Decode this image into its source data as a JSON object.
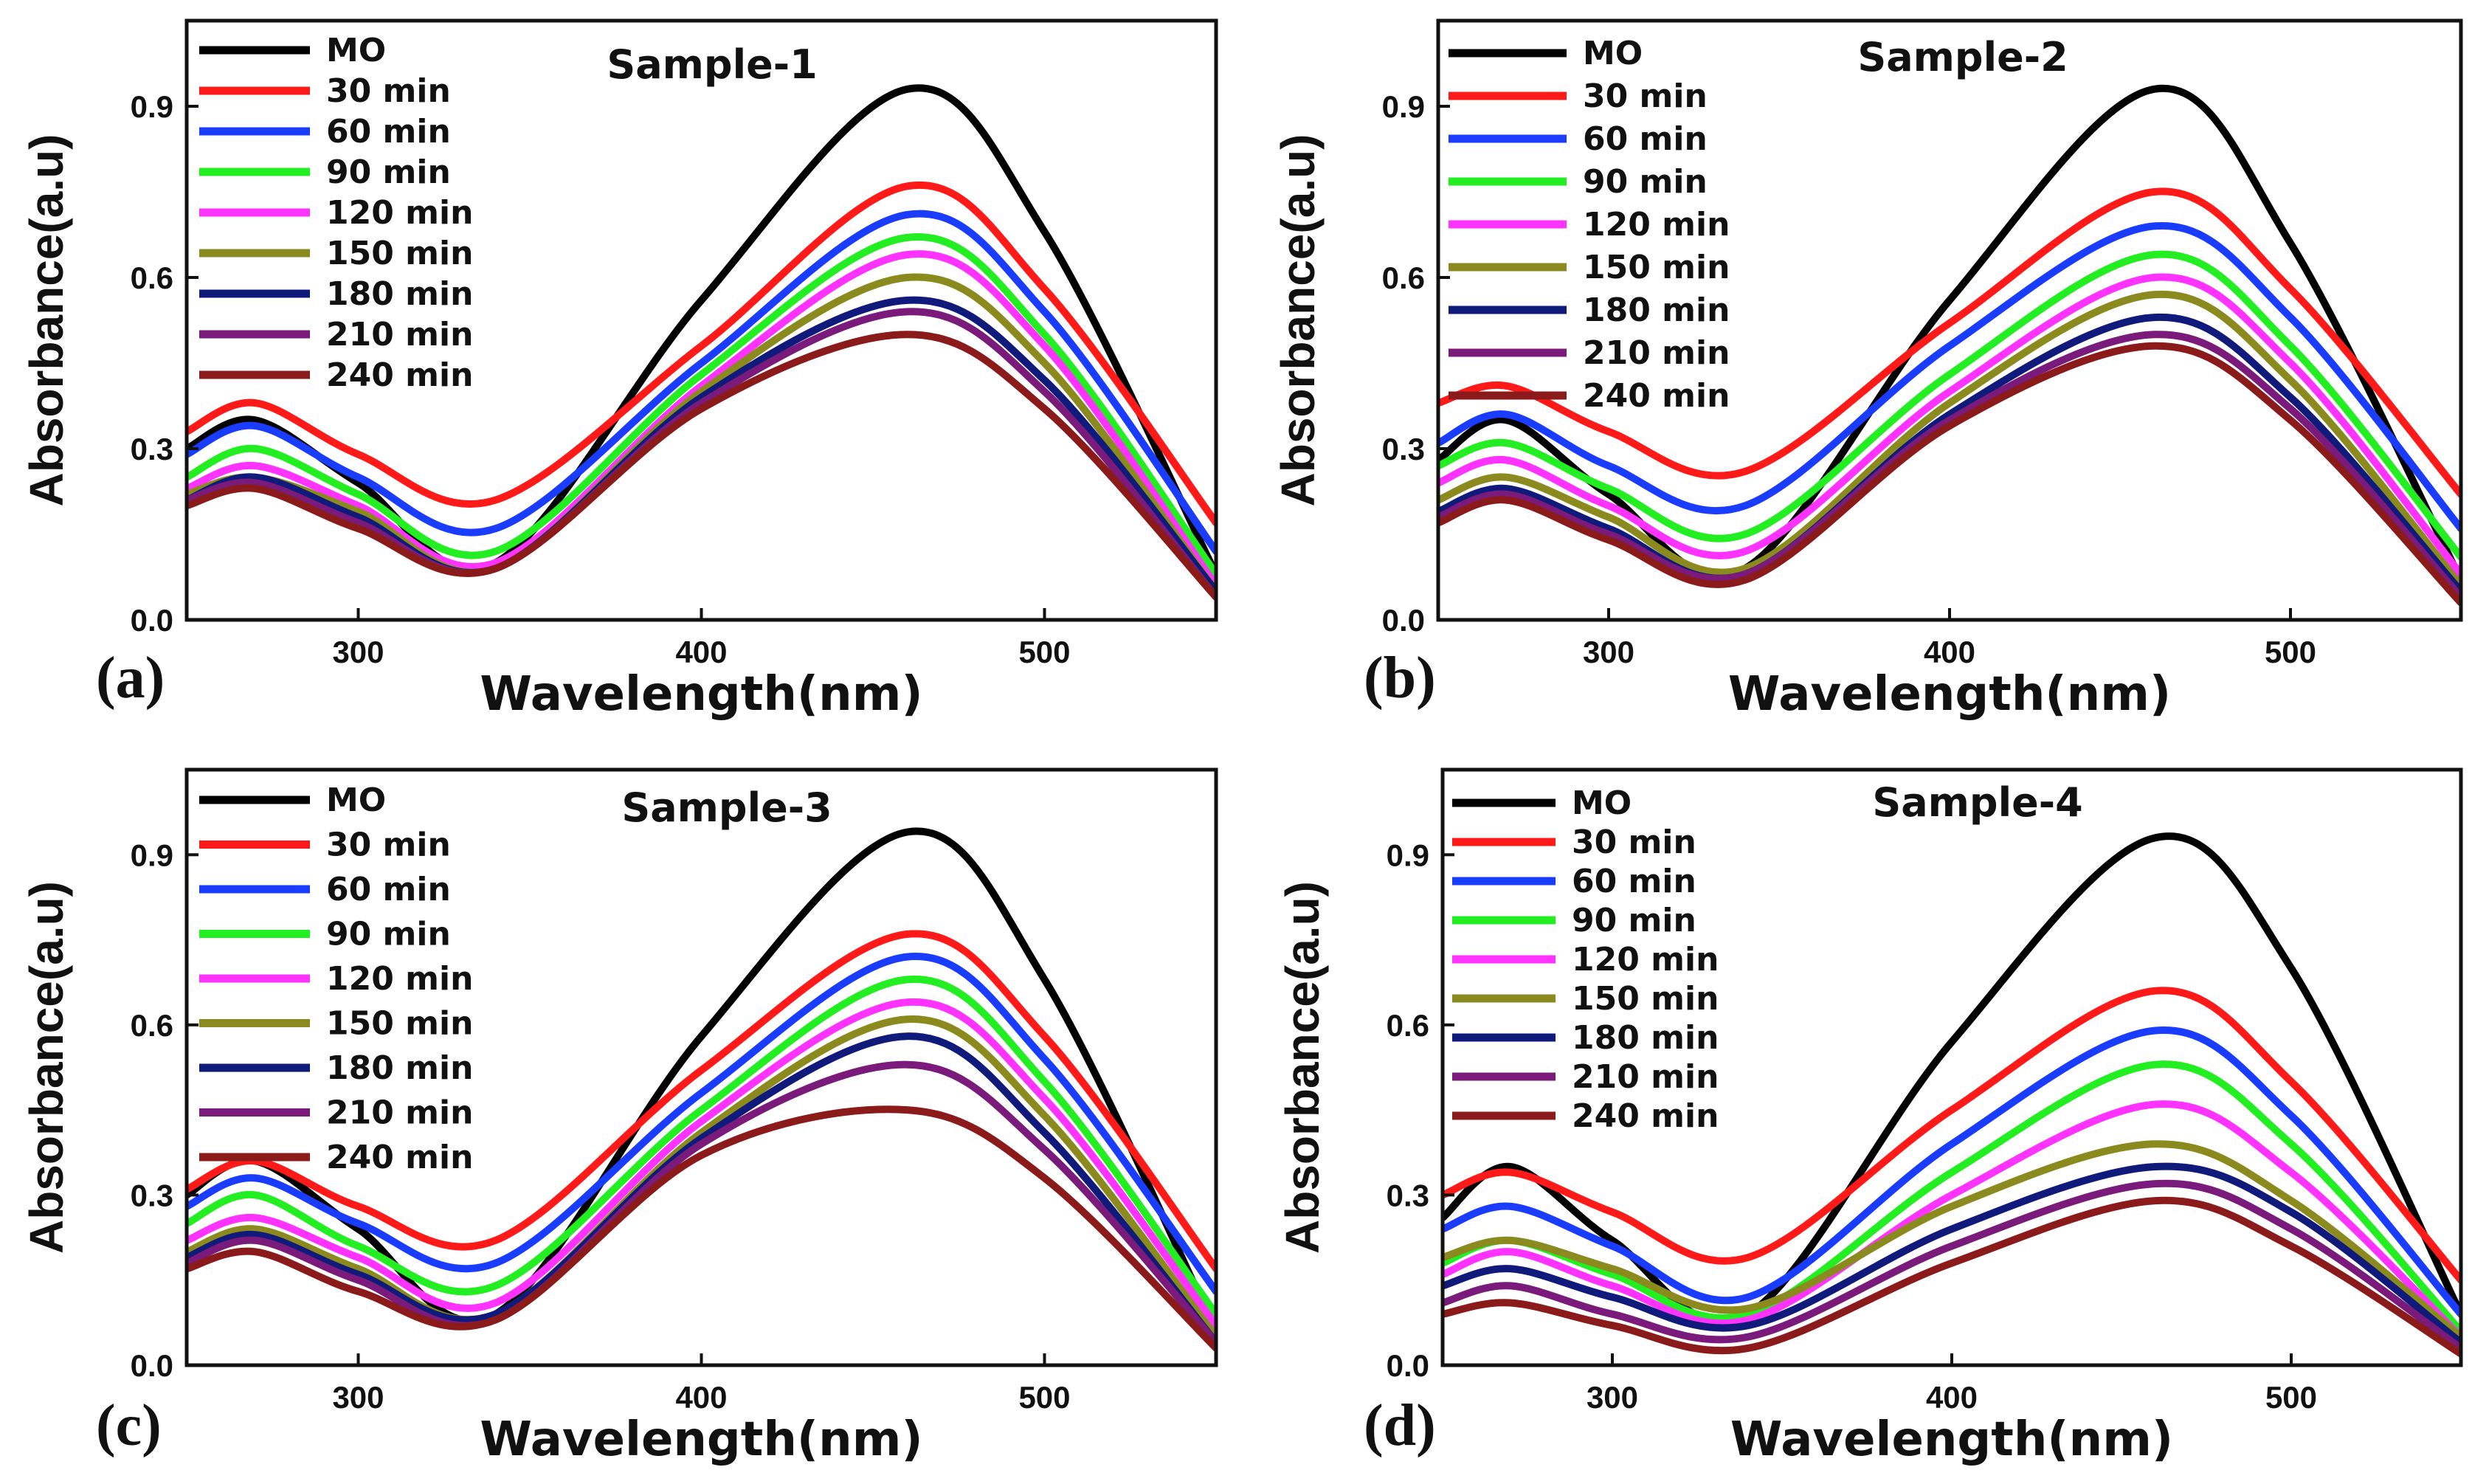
{
  "chart_data": [
    {
      "panel": "(a)",
      "type": "line",
      "title": "Sample-1",
      "xlabel": "Wavelength(nm)",
      "ylabel": "Absorbance(a.u)",
      "xlim": [
        250,
        550
      ],
      "ylim": [
        0,
        1.05
      ],
      "xticks": [
        "300",
        "400",
        "500"
      ],
      "yticks": [
        "0.0",
        "0.3",
        "0.6",
        "0.9"
      ],
      "grid": false,
      "legend": "top-left",
      "x": [
        250,
        270,
        300,
        340,
        400,
        460,
        500,
        550
      ],
      "series": [
        {
          "name": "MO",
          "color": "#000000",
          "values": [
            0.3,
            0.35,
            0.24,
            0.1,
            0.56,
            0.93,
            0.68,
            0.08
          ]
        },
        {
          "name": "30 min",
          "color": "#ff1a1a",
          "values": [
            0.33,
            0.38,
            0.29,
            0.21,
            0.48,
            0.76,
            0.58,
            0.17
          ]
        },
        {
          "name": "60 min",
          "color": "#1a3cff",
          "values": [
            0.29,
            0.34,
            0.25,
            0.16,
            0.45,
            0.71,
            0.54,
            0.12
          ]
        },
        {
          "name": "90 min",
          "color": "#22ee22",
          "values": [
            0.25,
            0.3,
            0.22,
            0.12,
            0.43,
            0.67,
            0.5,
            0.08
          ]
        },
        {
          "name": "120 min",
          "color": "#ff33ff",
          "values": [
            0.23,
            0.27,
            0.2,
            0.1,
            0.41,
            0.64,
            0.48,
            0.06
          ]
        },
        {
          "name": "150 min",
          "color": "#8a8a1e",
          "values": [
            0.22,
            0.25,
            0.19,
            0.09,
            0.4,
            0.6,
            0.45,
            0.05
          ]
        },
        {
          "name": "180 min",
          "color": "#101a7a",
          "values": [
            0.21,
            0.25,
            0.18,
            0.09,
            0.39,
            0.56,
            0.42,
            0.05
          ]
        },
        {
          "name": "210 min",
          "color": "#7a1a7a",
          "values": [
            0.21,
            0.24,
            0.17,
            0.09,
            0.38,
            0.54,
            0.4,
            0.04
          ]
        },
        {
          "name": "240 min",
          "color": "#8b1a1a",
          "values": [
            0.2,
            0.23,
            0.16,
            0.09,
            0.37,
            0.5,
            0.37,
            0.04
          ]
        }
      ]
    },
    {
      "panel": "(b)",
      "type": "line",
      "title": "Sample-2",
      "xlabel": "Wavelength(nm)",
      "ylabel": "Absorbance(a.u)",
      "xlim": [
        250,
        550
      ],
      "ylim": [
        0,
        1.05
      ],
      "xticks": [
        "300",
        "400",
        "500"
      ],
      "yticks": [
        "0.0",
        "0.3",
        "0.6",
        "0.9"
      ],
      "grid": false,
      "legend": "top-left",
      "x": [
        250,
        270,
        300,
        340,
        400,
        460,
        500,
        550
      ],
      "series": [
        {
          "name": "MO",
          "color": "#000000",
          "values": [
            0.28,
            0.35,
            0.22,
            0.09,
            0.56,
            0.93,
            0.66,
            0.07
          ]
        },
        {
          "name": "30 min",
          "color": "#ff1a1a",
          "values": [
            0.38,
            0.41,
            0.33,
            0.26,
            0.52,
            0.75,
            0.58,
            0.22
          ]
        },
        {
          "name": "60 min",
          "color": "#1a3cff",
          "values": [
            0.31,
            0.36,
            0.27,
            0.2,
            0.48,
            0.69,
            0.53,
            0.16
          ]
        },
        {
          "name": "90 min",
          "color": "#22ee22",
          "values": [
            0.27,
            0.31,
            0.23,
            0.15,
            0.43,
            0.64,
            0.48,
            0.11
          ]
        },
        {
          "name": "120 min",
          "color": "#ff33ff",
          "values": [
            0.24,
            0.28,
            0.2,
            0.12,
            0.4,
            0.6,
            0.45,
            0.08
          ]
        },
        {
          "name": "150 min",
          "color": "#8a8a1e",
          "values": [
            0.21,
            0.25,
            0.18,
            0.09,
            0.38,
            0.57,
            0.42,
            0.06
          ]
        },
        {
          "name": "180 min",
          "color": "#101a7a",
          "values": [
            0.19,
            0.23,
            0.16,
            0.08,
            0.36,
            0.53,
            0.39,
            0.05
          ]
        },
        {
          "name": "210 min",
          "color": "#7a1a7a",
          "values": [
            0.18,
            0.22,
            0.15,
            0.08,
            0.35,
            0.5,
            0.37,
            0.04
          ]
        },
        {
          "name": "240 min",
          "color": "#8b1a1a",
          "values": [
            0.17,
            0.21,
            0.14,
            0.07,
            0.34,
            0.48,
            0.35,
            0.03
          ]
        }
      ]
    },
    {
      "panel": "(c)",
      "type": "line",
      "title": "Sample-3",
      "xlabel": "Wavelength(nm)",
      "ylabel": "Absorbance(a.u)",
      "xlim": [
        250,
        550
      ],
      "ylim": [
        0,
        1.05
      ],
      "xticks": [
        "300",
        "400",
        "500"
      ],
      "yticks": [
        "0.0",
        "0.3",
        "0.6",
        "0.9"
      ],
      "grid": false,
      "legend": "top-left",
      "x": [
        250,
        270,
        300,
        340,
        400,
        460,
        500,
        550
      ],
      "series": [
        {
          "name": "MO",
          "color": "#000000",
          "values": [
            0.3,
            0.36,
            0.24,
            0.09,
            0.58,
            0.94,
            0.68,
            0.06
          ]
        },
        {
          "name": "30 min",
          "color": "#ff1a1a",
          "values": [
            0.31,
            0.36,
            0.28,
            0.22,
            0.52,
            0.76,
            0.58,
            0.17
          ]
        },
        {
          "name": "60 min",
          "color": "#1a3cff",
          "values": [
            0.28,
            0.33,
            0.25,
            0.18,
            0.48,
            0.72,
            0.54,
            0.13
          ]
        },
        {
          "name": "90 min",
          "color": "#22ee22",
          "values": [
            0.25,
            0.3,
            0.21,
            0.14,
            0.45,
            0.68,
            0.5,
            0.09
          ]
        },
        {
          "name": "120 min",
          "color": "#ff33ff",
          "values": [
            0.22,
            0.26,
            0.19,
            0.11,
            0.43,
            0.64,
            0.47,
            0.07
          ]
        },
        {
          "name": "150 min",
          "color": "#8a8a1e",
          "values": [
            0.2,
            0.24,
            0.17,
            0.09,
            0.41,
            0.61,
            0.44,
            0.05
          ]
        },
        {
          "name": "180 min",
          "color": "#101a7a",
          "values": [
            0.19,
            0.23,
            0.16,
            0.09,
            0.4,
            0.58,
            0.41,
            0.04
          ]
        },
        {
          "name": "210 min",
          "color": "#7a1a7a",
          "values": [
            0.18,
            0.22,
            0.15,
            0.08,
            0.39,
            0.53,
            0.38,
            0.04
          ]
        },
        {
          "name": "240 min",
          "color": "#8b1a1a",
          "values": [
            0.17,
            0.2,
            0.13,
            0.08,
            0.37,
            0.45,
            0.33,
            0.03
          ]
        }
      ]
    },
    {
      "panel": "(d)",
      "type": "line",
      "title": "Sample-4",
      "xlabel": "Wavelength(nm)",
      "ylabel": "Absorbance(a.u)",
      "xlim": [
        250,
        550
      ],
      "ylim": [
        0,
        1.05
      ],
      "xticks": [
        "300",
        "400",
        "500"
      ],
      "yticks": [
        "0.0",
        "0.3",
        "0.6",
        "0.9"
      ],
      "grid": false,
      "legend": "top-left",
      "x": [
        250,
        270,
        300,
        340,
        400,
        460,
        500,
        550
      ],
      "series": [
        {
          "name": "MO",
          "color": "#000000",
          "values": [
            0.26,
            0.35,
            0.22,
            0.09,
            0.57,
            0.93,
            0.7,
            0.09
          ]
        },
        {
          "name": "30 min",
          "color": "#ff1a1a",
          "values": [
            0.3,
            0.34,
            0.27,
            0.19,
            0.45,
            0.66,
            0.5,
            0.15
          ]
        },
        {
          "name": "60 min",
          "color": "#1a3cff",
          "values": [
            0.24,
            0.28,
            0.21,
            0.12,
            0.39,
            0.59,
            0.44,
            0.09
          ]
        },
        {
          "name": "90 min",
          "color": "#22ee22",
          "values": [
            0.18,
            0.22,
            0.16,
            0.09,
            0.34,
            0.53,
            0.39,
            0.06
          ]
        },
        {
          "name": "120 min",
          "color": "#ff33ff",
          "values": [
            0.16,
            0.2,
            0.14,
            0.08,
            0.3,
            0.46,
            0.34,
            0.05
          ]
        },
        {
          "name": "150 min",
          "color": "#8a8a1e",
          "values": [
            0.19,
            0.22,
            0.17,
            0.1,
            0.28,
            0.39,
            0.29,
            0.05
          ]
        },
        {
          "name": "180 min",
          "color": "#101a7a",
          "values": [
            0.14,
            0.17,
            0.12,
            0.07,
            0.24,
            0.35,
            0.27,
            0.04
          ]
        },
        {
          "name": "210 min",
          "color": "#7a1a7a",
          "values": [
            0.11,
            0.14,
            0.09,
            0.05,
            0.21,
            0.32,
            0.24,
            0.03
          ]
        },
        {
          "name": "240 min",
          "color": "#8b1a1a",
          "values": [
            0.09,
            0.11,
            0.07,
            0.03,
            0.18,
            0.29,
            0.21,
            0.02
          ]
        }
      ]
    }
  ]
}
